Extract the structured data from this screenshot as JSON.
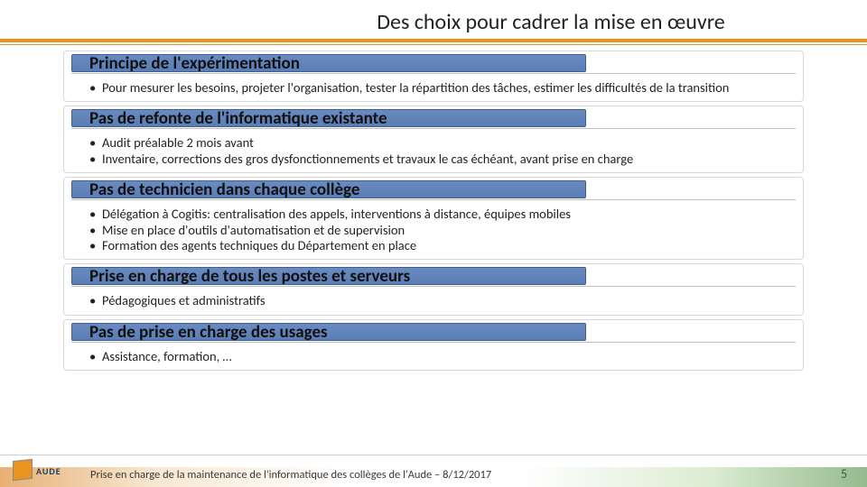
{
  "title": "Des choix pour cadrer la mise en œuvre",
  "accent_color": "#e8941f",
  "header_bar_color": "#5a7db5",
  "sections": [
    {
      "heading": "Principe de l'expérimentation",
      "bullets": [
        "Pour mesurer les besoins, projeter l'organisation, tester la répartition des tâches, estimer les difficultés de la transition"
      ]
    },
    {
      "heading": "Pas de refonte de l'informatique existante",
      "bullets": [
        "Audit préalable 2 mois avant",
        "Inventaire, corrections des gros dysfonctionnements et travaux le cas échéant, avant prise en charge"
      ]
    },
    {
      "heading": "Pas de technicien dans chaque collège",
      "bullets": [
        "Délégation à Cogitis: centralisation des appels, interventions à distance, équipes mobiles",
        "Mise en place d'outils d'automatisation et de supervision",
        "Formation des agents techniques du Département en place"
      ]
    },
    {
      "heading": "Prise en charge de tous les postes et serveurs",
      "bullets": [
        "Pédagogiques et administratifs"
      ]
    },
    {
      "heading": "Pas de prise en charge des usages",
      "bullets": [
        "Assistance, formation, …"
      ]
    }
  ],
  "logo_text": "AUDE",
  "footer_text": "Prise en charge de la maintenance de l'informatique des collèges de l'Aude – 8/12/2017",
  "page_number": "5"
}
